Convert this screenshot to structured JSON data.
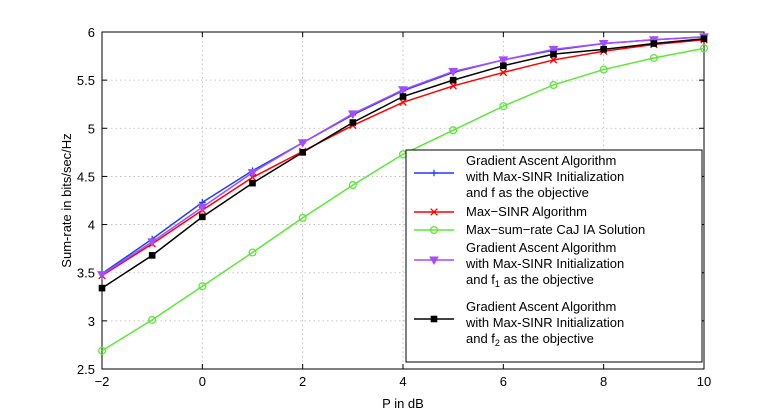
{
  "chart_data": {
    "type": "line",
    "title": "",
    "xlabel": "P in dB",
    "ylabel": "Sum-rate in bits/sec/Hz",
    "xlim": [
      -2,
      10
    ],
    "ylim": [
      2.5,
      6
    ],
    "x_ticks": [
      -2,
      0,
      2,
      4,
      6,
      8,
      10
    ],
    "y_ticks": [
      2.5,
      3,
      3.5,
      4,
      4.5,
      5,
      5.5,
      6
    ],
    "x_tick_labels": [
      "−2",
      "0",
      "2",
      "4",
      "6",
      "8",
      "10"
    ],
    "y_tick_labels": [
      "2.5",
      "3",
      "3.5",
      "4",
      "4.5",
      "5",
      "5.5",
      "6"
    ],
    "grid": true,
    "legend_position": "lower-right",
    "x": [
      -2,
      -1,
      0,
      1,
      2,
      3,
      4,
      5,
      6,
      7,
      8,
      9,
      10
    ],
    "series": [
      {
        "name": "Gradient Ascent Algorithm with Max-SINR Initialization and f as the objective",
        "legend_lines": [
          "Gradient Ascent Algorithm",
          " with Max-SINR Initialization",
          "and f as the objective"
        ],
        "color": "#1f3fff",
        "marker": "plus",
        "values": [
          3.49,
          3.85,
          4.23,
          4.56,
          4.85,
          5.14,
          5.39,
          5.58,
          5.71,
          5.81,
          5.88,
          5.92,
          5.95
        ]
      },
      {
        "name": "Max-SINR Algorithm",
        "legend_lines": [
          "Max−SINR Algorithm"
        ],
        "color": "#ff0000",
        "marker": "x",
        "values": [
          3.47,
          3.8,
          4.15,
          4.49,
          4.76,
          5.03,
          5.27,
          5.44,
          5.58,
          5.71,
          5.8,
          5.87,
          5.92
        ]
      },
      {
        "name": "Max-sum-rate CaJ IA Solution",
        "legend_lines": [
          "Max−sum−rate CaJ IA Solution"
        ],
        "color": "#5ee63c",
        "marker": "circle",
        "values": [
          2.69,
          3.01,
          3.36,
          3.71,
          4.07,
          4.41,
          4.73,
          4.98,
          5.23,
          5.45,
          5.61,
          5.73,
          5.83
        ]
      },
      {
        "name": "Gradient Ascent Algorithm with Max-SINR Initialization and f1 as the objective",
        "legend_lines": [
          "Gradient Ascent Algorithm",
          " with Max-SINR Initialization",
          "and f|1| as the objective"
        ],
        "color": "#a64cff",
        "marker": "triangle-down",
        "values": [
          3.48,
          3.82,
          4.18,
          4.54,
          4.85,
          5.15,
          5.4,
          5.59,
          5.71,
          5.82,
          5.88,
          5.92,
          5.95
        ]
      },
      {
        "name": "Gradient Ascent Algorithm with Max-SINR Initialization and f2 as the objective",
        "legend_lines": [
          "Gradient Ascent Algorithm",
          " with Max-SINR Initialization",
          "and f|2| as the objective"
        ],
        "color": "#000000",
        "marker": "square",
        "values": [
          3.34,
          3.68,
          4.08,
          4.43,
          4.75,
          5.06,
          5.33,
          5.5,
          5.65,
          5.77,
          5.82,
          5.88,
          5.93
        ]
      }
    ]
  }
}
